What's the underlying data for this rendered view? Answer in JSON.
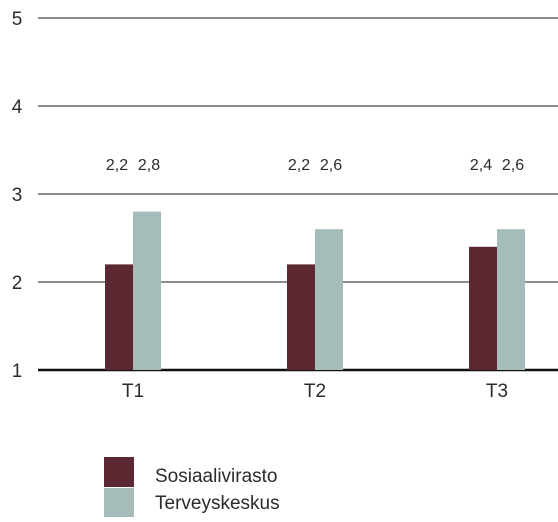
{
  "chart_data": {
    "type": "bar",
    "categories": [
      "T1",
      "T2",
      "T3"
    ],
    "series": [
      {
        "name": "Sosiaalivirasto",
        "values": [
          2.2,
          2.2,
          2.4
        ],
        "labels": [
          "2,2",
          "2,2",
          "2,4"
        ],
        "color": "#5c2832"
      },
      {
        "name": "Terveyskeskus",
        "values": [
          2.8,
          2.6,
          2.6
        ],
        "labels": [
          "2,8",
          "2,6",
          "2,6"
        ],
        "color": "#a5bcbb"
      }
    ],
    "ylim": [
      1,
      5
    ],
    "yticks": [
      "1",
      "2",
      "3",
      "4",
      "5"
    ],
    "grid": true,
    "legend_position": "bottom-left"
  }
}
